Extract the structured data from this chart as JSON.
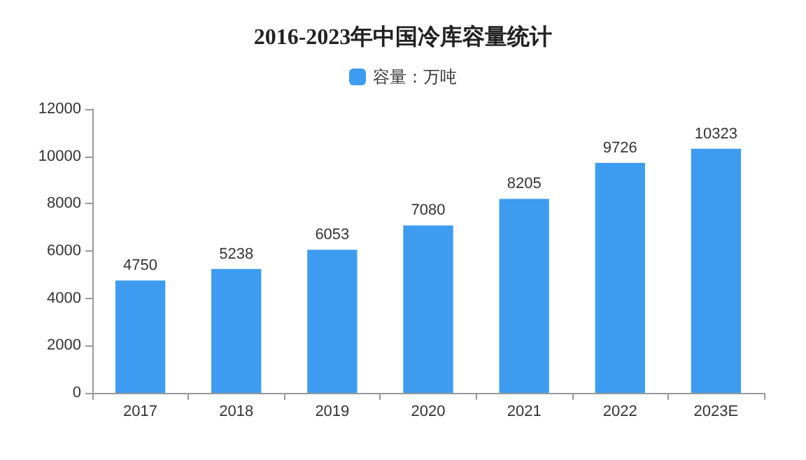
{
  "chart_data": {
    "type": "bar",
    "title": "2016-2023年中国冷库容量统计",
    "categories": [
      "2017",
      "2018",
      "2019",
      "2020",
      "2021",
      "2022",
      "2023E"
    ],
    "series": [
      {
        "name": "容量：万吨",
        "color": "#3d9cf0",
        "values": [
          4750,
          5238,
          6053,
          7080,
          8205,
          9726,
          10323
        ]
      }
    ],
    "ylim": [
      0,
      12000
    ],
    "yticks": [
      0,
      2000,
      4000,
      6000,
      8000,
      10000,
      12000
    ],
    "grid": false,
    "legend": "top",
    "data_labels": true
  }
}
